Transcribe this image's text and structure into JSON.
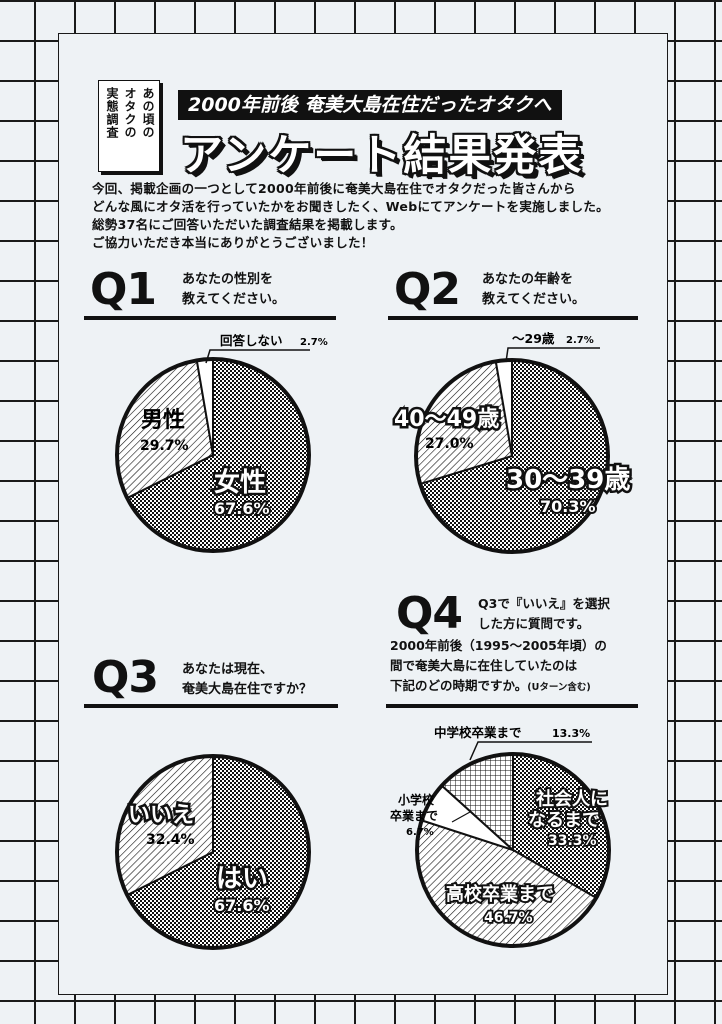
{
  "header": {
    "stamp_lines": [
      "あの頃の",
      "オタクの",
      "実態調査"
    ],
    "banner": "2000年前後 奄美大島在住だったオタクへ",
    "title": "アンケート結果発表"
  },
  "intro": {
    "lines": [
      "今回、掲載企画の一つとして2000年前後に奄美大島在住でオタクだった皆さんから",
      "どんな風にオタ活を行っていたかをお聞きしたく、Webにてアンケートを実施しました。",
      "総勢37名にご回答いただいた調査結果を掲載します。",
      "ご協力いただき本当にありがとうございました！"
    ]
  },
  "questions": {
    "q1": {
      "label": "Q1",
      "line1": "あなたの性別を",
      "line2": "教えてください。"
    },
    "q2": {
      "label": "Q2",
      "line1": "あなたの年齢を",
      "line2": "教えてください。"
    },
    "q3": {
      "label": "Q3",
      "line1": "あなたは現在、",
      "line2": "奄美大島在住ですか？"
    },
    "q4": {
      "label": "Q4",
      "line1": "Q3で『いいえ』を選択",
      "line2": "した方に質問です。",
      "line3": "2000年前後（1995〜2005年頃）の",
      "line4": "間で奄美大島に在住していたのは",
      "line5": "下記のどの時期ですか。",
      "note": "(Uターン含む)"
    }
  },
  "chart_data": [
    {
      "id": "q1",
      "type": "pie",
      "title": "あなたの性別を教えてください。",
      "slices": [
        {
          "label": "女性",
          "value": 67.6,
          "pct": "67.6%",
          "pattern": "dots"
        },
        {
          "label": "男性",
          "value": 29.7,
          "pct": "29.7%",
          "pattern": "hatch"
        },
        {
          "label": "回答しない",
          "value": 2.7,
          "pct": "2.7%",
          "pattern": "plain"
        }
      ]
    },
    {
      "id": "q2",
      "type": "pie",
      "title": "あなたの年齢を教えてください。",
      "slices": [
        {
          "label": "30〜39歳",
          "value": 70.3,
          "pct": "70.3%",
          "pattern": "dots"
        },
        {
          "label": "40〜49歳",
          "value": 27.0,
          "pct": "27.0%",
          "pattern": "hatch"
        },
        {
          "label": "〜29歳",
          "value": 2.7,
          "pct": "2.7%",
          "pattern": "plain"
        }
      ]
    },
    {
      "id": "q3",
      "type": "pie",
      "title": "あなたは現在、奄美大島在住ですか？",
      "slices": [
        {
          "label": "はい",
          "value": 67.6,
          "pct": "67.6%",
          "pattern": "dots"
        },
        {
          "label": "いいえ",
          "value": 32.4,
          "pct": "32.4%",
          "pattern": "hatch"
        }
      ]
    },
    {
      "id": "q4",
      "type": "pie",
      "title": "2000年前後に奄美大島に在住していた時期",
      "slices": [
        {
          "label": "社会人になるまで",
          "value": 33.3,
          "pct": "33.3%",
          "pattern": "dots"
        },
        {
          "label": "高校卒業まで",
          "value": 46.7,
          "pct": "46.7%",
          "pattern": "hatch"
        },
        {
          "label": "小学校卒業まで",
          "value": 6.7,
          "pct": "6.7%",
          "pattern": "plain"
        },
        {
          "label": "中学校卒業まで",
          "value": 13.3,
          "pct": "13.3%",
          "pattern": "grid"
        }
      ]
    }
  ]
}
